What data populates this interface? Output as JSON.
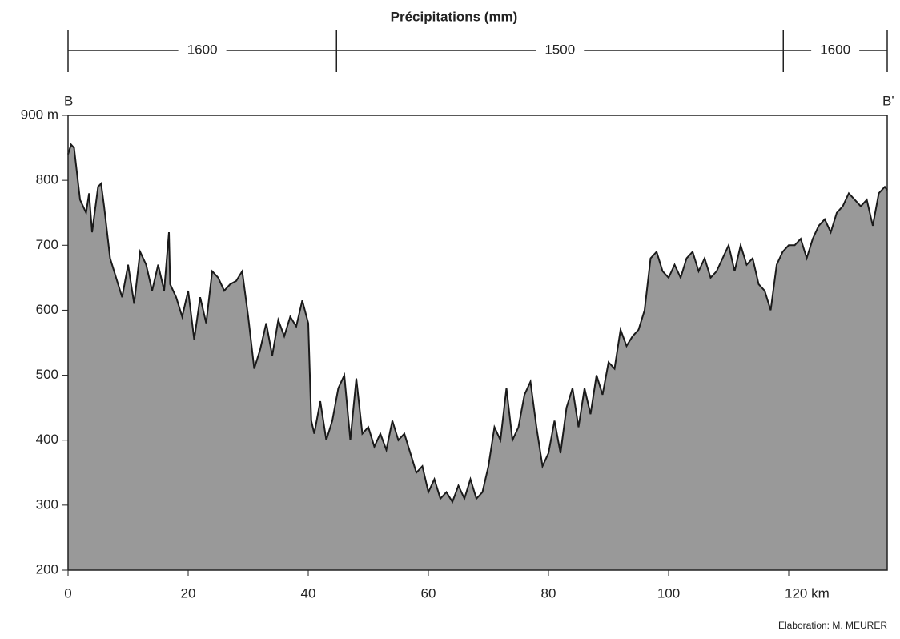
{
  "chart_data": {
    "type": "area",
    "title": "Précipitations (mm)",
    "start_label": "B",
    "end_label": "B'",
    "credit": "Elaboration: M. MEURER",
    "precipitation": {
      "boundaries": [
        0,
        44.7,
        119.1,
        136.4
      ],
      "values": [
        1600,
        1500,
        1600
      ]
    },
    "x": [
      0,
      0.5,
      1,
      2,
      3,
      3.5,
      4,
      5,
      5.5,
      6,
      7,
      8,
      9,
      10,
      11,
      12,
      13,
      14,
      15,
      16,
      16.8,
      17,
      18,
      19,
      20,
      21,
      22,
      23,
      24,
      25,
      26,
      27,
      28,
      29,
      30,
      31,
      32,
      33,
      34,
      35,
      36,
      37,
      38,
      39,
      40,
      40.5,
      41,
      42,
      43,
      44,
      45,
      46,
      47,
      48,
      49,
      50,
      51,
      52,
      53,
      54,
      55,
      56,
      57,
      58,
      59,
      60,
      61,
      62,
      63,
      64,
      65,
      66,
      67,
      68,
      69,
      70,
      71,
      72,
      73,
      74,
      75,
      76,
      77,
      78,
      79,
      80,
      81,
      82,
      83,
      84,
      85,
      86,
      87,
      88,
      89,
      90,
      91,
      92,
      93,
      94,
      95,
      96,
      97,
      98,
      99,
      100,
      101,
      102,
      103,
      104,
      105,
      106,
      107,
      108,
      109,
      110,
      111,
      112,
      113,
      114,
      115,
      116,
      117,
      118,
      119,
      120,
      121,
      122,
      123,
      124,
      125,
      126,
      127,
      128,
      129,
      130,
      131,
      132,
      133,
      134,
      135,
      136,
      136.4
    ],
    "series": [
      {
        "color": "#999999",
        "values": [
          840,
          855,
          850,
          770,
          750,
          780,
          720,
          790,
          795,
          760,
          680,
          650,
          620,
          670,
          610,
          690,
          670,
          630,
          670,
          630,
          720,
          640,
          620,
          590,
          630,
          555,
          620,
          580,
          660,
          650,
          630,
          640,
          645,
          660,
          590,
          510,
          540,
          580,
          530,
          585,
          560,
          590,
          575,
          615,
          580,
          430,
          410,
          460,
          400,
          430,
          480,
          500,
          400,
          495,
          410,
          420,
          390,
          410,
          385,
          430,
          400,
          410,
          380,
          350,
          360,
          320,
          340,
          310,
          320,
          305,
          330,
          310,
          340,
          310,
          320,
          360,
          420,
          400,
          480,
          400,
          420,
          470,
          490,
          420,
          360,
          380,
          430,
          380,
          450,
          480,
          420,
          480,
          440,
          500,
          470,
          520,
          510,
          570,
          545,
          560,
          570,
          600,
          680,
          690,
          660,
          650,
          670,
          650,
          680,
          690,
          660,
          680,
          650,
          660,
          680,
          700,
          660,
          700,
          670,
          680,
          640,
          630,
          600,
          670,
          690,
          700,
          700,
          710,
          680,
          710,
          730,
          740,
          720,
          750,
          760,
          780,
          770,
          760,
          770,
          730,
          780,
          790,
          785
        ]
      }
    ],
    "xlim": [
      0,
      136.4
    ],
    "ylim": [
      200,
      900
    ],
    "xticks": [
      0,
      20,
      40,
      60,
      80,
      100,
      {
        "value": 120,
        "label": "120 km"
      }
    ],
    "yticks": [
      200,
      300,
      400,
      500,
      600,
      700,
      800,
      {
        "value": 900,
        "label": "900 m"
      }
    ]
  }
}
